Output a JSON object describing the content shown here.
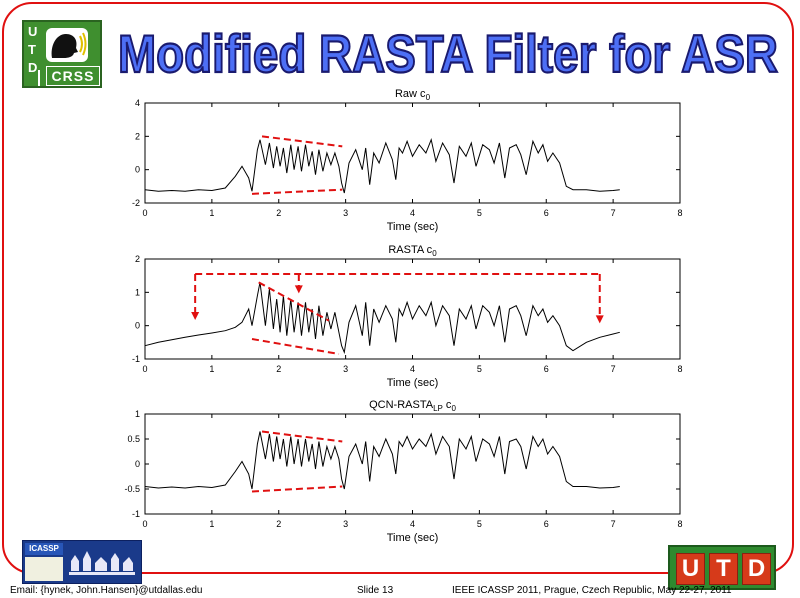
{
  "slide": {
    "title": "Modified RASTA Filter for ASR",
    "footer_left": "Email: {hynek, John.Hansen}@utdallas.edu",
    "footer_center": "Slide  13",
    "footer_right": "IEEE ICASSP 2011, Prague, Czech Republic, May 22-27, 2011",
    "logo_letters": [
      "U",
      "T",
      "D"
    ],
    "logo_sub": "CRSS",
    "icassp_label": "ICASSP",
    "utd_badge": [
      "U",
      "T",
      "D"
    ],
    "colors": {
      "title_fill": "#4d6ff5",
      "title_outline": "#1a1a6e",
      "frame": "#e01010",
      "annotation": "#e01010",
      "logo_green": "#3f8f2f"
    }
  },
  "chart_data": [
    {
      "type": "line",
      "title": "Raw c0",
      "title_main": "Raw",
      "title_sym": "c",
      "title_sub": "0",
      "xlabel": "Time (sec)",
      "xlim": [
        0,
        8
      ],
      "ylim": [
        -2,
        4
      ],
      "xticks": [
        0,
        1,
        2,
        3,
        4,
        5,
        6,
        7,
        8
      ],
      "yticks": [
        -2,
        0,
        2,
        4
      ],
      "series": [
        {
          "x": [
            0,
            0.2,
            0.4,
            0.6,
            0.8,
            1.0,
            1.2,
            1.35,
            1.45,
            1.55,
            1.6,
            1.68,
            1.72,
            1.8,
            1.86,
            1.92,
            1.97,
            2.02,
            2.07,
            2.12,
            2.18,
            2.23,
            2.29,
            2.34,
            2.4,
            2.45,
            2.5,
            2.55,
            2.6,
            2.66,
            2.72,
            2.78,
            2.84,
            2.9,
            2.94,
            2.98,
            3.05,
            3.15,
            3.25,
            3.3,
            3.36,
            3.42,
            3.5,
            3.6,
            3.7,
            3.75,
            3.8,
            3.85,
            3.92,
            4.0,
            4.1,
            4.2,
            4.28,
            4.35,
            4.45,
            4.55,
            4.62,
            4.7,
            4.8,
            4.88,
            4.95,
            5.05,
            5.15,
            5.22,
            5.3,
            5.38,
            5.45,
            5.55,
            5.62,
            5.7,
            5.8,
            5.88,
            5.95,
            6.02,
            6.1,
            6.2,
            6.3,
            6.4,
            6.6,
            6.8,
            7.0,
            7.1
          ],
          "y": [
            -1.2,
            -1.3,
            -1.25,
            -1.3,
            -1.2,
            -1.25,
            -1.1,
            -0.4,
            0.2,
            -0.5,
            -1.3,
            1.2,
            1.8,
            0.3,
            1.6,
            0.1,
            1.4,
            0.2,
            1.3,
            -0.2,
            1.5,
            0.0,
            1.4,
            -0.1,
            1.5,
            0.2,
            1.1,
            -0.3,
            1.2,
            -0.1,
            1.0,
            0.3,
            1.0,
            0.2,
            -0.8,
            -1.4,
            0.4,
            1.2,
            0.0,
            1.3,
            -0.9,
            1.0,
            0.4,
            1.6,
            0.6,
            -0.6,
            1.3,
            1.0,
            1.7,
            0.8,
            1.5,
            1.0,
            1.8,
            0.5,
            1.6,
            0.9,
            -0.8,
            1.4,
            0.8,
            1.6,
            0.2,
            1.5,
            1.2,
            0.4,
            1.6,
            -0.5,
            1.3,
            1.5,
            0.9,
            -0.3,
            1.7,
            1.0,
            1.5,
            0.5,
            1.0,
            0.4,
            -1.0,
            -1.2,
            -1.2,
            -1.3,
            -1.25,
            -1.2
          ]
        }
      ],
      "annotations": [
        {
          "type": "dashed_line",
          "x1": 1.75,
          "y1": 2.0,
          "x2": 2.95,
          "y2": 1.4
        },
        {
          "type": "dashed_line",
          "x1": 1.6,
          "y1": -1.45,
          "x2": 2.95,
          "y2": -1.2
        }
      ]
    },
    {
      "type": "line",
      "title": "RASTA c0",
      "title_main": "RASTA",
      "title_sym": "c",
      "title_sub": "0",
      "xlabel": "Time (sec)",
      "xlim": [
        0,
        8
      ],
      "ylim": [
        -1,
        2
      ],
      "xticks": [
        0,
        1,
        2,
        3,
        4,
        5,
        6,
        7,
        8
      ],
      "yticks": [
        -1,
        0,
        1,
        2
      ],
      "series": [
        {
          "x": [
            0,
            0.2,
            0.4,
            0.6,
            0.8,
            1.0,
            1.2,
            1.35,
            1.45,
            1.55,
            1.6,
            1.68,
            1.72,
            1.8,
            1.86,
            1.92,
            1.97,
            2.02,
            2.07,
            2.12,
            2.18,
            2.23,
            2.29,
            2.34,
            2.4,
            2.45,
            2.5,
            2.55,
            2.6,
            2.66,
            2.72,
            2.78,
            2.84,
            2.9,
            2.94,
            2.98,
            3.05,
            3.15,
            3.25,
            3.3,
            3.36,
            3.42,
            3.5,
            3.6,
            3.7,
            3.75,
            3.8,
            3.85,
            3.92,
            4.0,
            4.1,
            4.2,
            4.28,
            4.35,
            4.45,
            4.55,
            4.62,
            4.7,
            4.8,
            4.88,
            4.95,
            5.05,
            5.15,
            5.22,
            5.3,
            5.38,
            5.45,
            5.55,
            5.62,
            5.7,
            5.8,
            5.88,
            5.95,
            6.02,
            6.1,
            6.2,
            6.3,
            6.4,
            6.6,
            6.8,
            7.0,
            7.1
          ],
          "y": [
            -0.6,
            -0.5,
            -0.42,
            -0.35,
            -0.28,
            -0.22,
            -0.15,
            -0.05,
            0.1,
            0.5,
            0.0,
            0.9,
            1.3,
            0.0,
            1.1,
            -0.1,
            0.8,
            -0.2,
            0.9,
            -0.3,
            0.8,
            -0.2,
            0.7,
            -0.3,
            0.7,
            -0.2,
            0.5,
            -0.4,
            0.6,
            -0.3,
            0.4,
            -0.1,
            0.4,
            -0.2,
            -0.6,
            -0.8,
            0.1,
            0.6,
            -0.3,
            0.7,
            -0.6,
            0.5,
            0.1,
            0.6,
            0.2,
            -0.5,
            0.5,
            0.3,
            0.7,
            0.2,
            0.6,
            0.3,
            0.7,
            0.0,
            0.6,
            0.3,
            -0.6,
            0.5,
            0.2,
            0.6,
            -0.1,
            0.6,
            0.4,
            0.0,
            0.6,
            -0.5,
            0.5,
            0.6,
            0.3,
            -0.3,
            0.6,
            0.3,
            0.5,
            0.1,
            0.3,
            0.0,
            -0.6,
            -0.75,
            -0.5,
            -0.35,
            -0.25,
            -0.2
          ]
        }
      ],
      "annotations": [
        {
          "type": "dashed_line",
          "x1": 1.7,
          "y1": 1.3,
          "x2": 2.75,
          "y2": 0.15
        },
        {
          "type": "dashed_line",
          "x1": 1.6,
          "y1": -0.4,
          "x2": 2.9,
          "y2": -0.85
        },
        {
          "type": "dashed_bracket",
          "x_left": 0.75,
          "x_mid": 2.3,
          "x_right": 6.8,
          "y_top": 1.55,
          "y_left_end": 0.2,
          "y_mid_end": 1.0,
          "y_right_end": 0.1
        }
      ]
    },
    {
      "type": "line",
      "title": "QCN-RASTALP c0",
      "title_main": "QCN-RASTA",
      "title_mainsub": "LP",
      "title_sym": "c",
      "title_sub": "0",
      "xlabel": "Time (sec)",
      "xlim": [
        0,
        8
      ],
      "ylim": [
        -1,
        1
      ],
      "xticks": [
        0,
        1,
        2,
        3,
        4,
        5,
        6,
        7,
        8
      ],
      "yticks": [
        -1,
        -0.5,
        0,
        0.5,
        1
      ],
      "series": [
        {
          "x": [
            0,
            0.2,
            0.4,
            0.6,
            0.8,
            1.0,
            1.2,
            1.35,
            1.45,
            1.55,
            1.6,
            1.68,
            1.72,
            1.8,
            1.86,
            1.92,
            1.97,
            2.02,
            2.07,
            2.12,
            2.18,
            2.23,
            2.29,
            2.34,
            2.4,
            2.45,
            2.5,
            2.55,
            2.6,
            2.66,
            2.72,
            2.78,
            2.84,
            2.9,
            2.94,
            2.98,
            3.05,
            3.15,
            3.25,
            3.3,
            3.36,
            3.42,
            3.5,
            3.6,
            3.7,
            3.75,
            3.8,
            3.85,
            3.92,
            4.0,
            4.1,
            4.2,
            4.28,
            4.35,
            4.45,
            4.55,
            4.62,
            4.7,
            4.8,
            4.88,
            4.95,
            5.05,
            5.15,
            5.22,
            5.3,
            5.38,
            5.45,
            5.55,
            5.62,
            5.7,
            5.8,
            5.88,
            5.95,
            6.02,
            6.1,
            6.2,
            6.3,
            6.4,
            6.6,
            6.8,
            7.0,
            7.1
          ],
          "y": [
            -0.45,
            -0.48,
            -0.46,
            -0.48,
            -0.45,
            -0.47,
            -0.42,
            -0.15,
            0.05,
            -0.2,
            -0.5,
            0.4,
            0.65,
            0.1,
            0.6,
            0.05,
            0.55,
            0.1,
            0.5,
            -0.05,
            0.55,
            0.0,
            0.5,
            -0.05,
            0.5,
            0.05,
            0.4,
            -0.1,
            0.45,
            -0.05,
            0.35,
            0.1,
            0.35,
            0.1,
            -0.3,
            -0.5,
            0.15,
            0.4,
            0.0,
            0.45,
            -0.35,
            0.35,
            0.15,
            0.5,
            0.2,
            -0.2,
            0.45,
            0.35,
            0.55,
            0.3,
            0.5,
            0.35,
            0.6,
            0.2,
            0.55,
            0.35,
            -0.3,
            0.5,
            0.3,
            0.55,
            0.05,
            0.5,
            0.4,
            0.15,
            0.55,
            -0.2,
            0.45,
            0.5,
            0.35,
            -0.1,
            0.55,
            0.35,
            0.5,
            0.2,
            0.35,
            0.15,
            -0.35,
            -0.45,
            -0.45,
            -0.48,
            -0.47,
            -0.45
          ]
        }
      ],
      "annotations": [
        {
          "type": "dashed_line",
          "x1": 1.75,
          "y1": 0.65,
          "x2": 2.95,
          "y2": 0.45
        },
        {
          "type": "dashed_line",
          "x1": 1.6,
          "y1": -0.55,
          "x2": 2.95,
          "y2": -0.45
        }
      ]
    }
  ]
}
